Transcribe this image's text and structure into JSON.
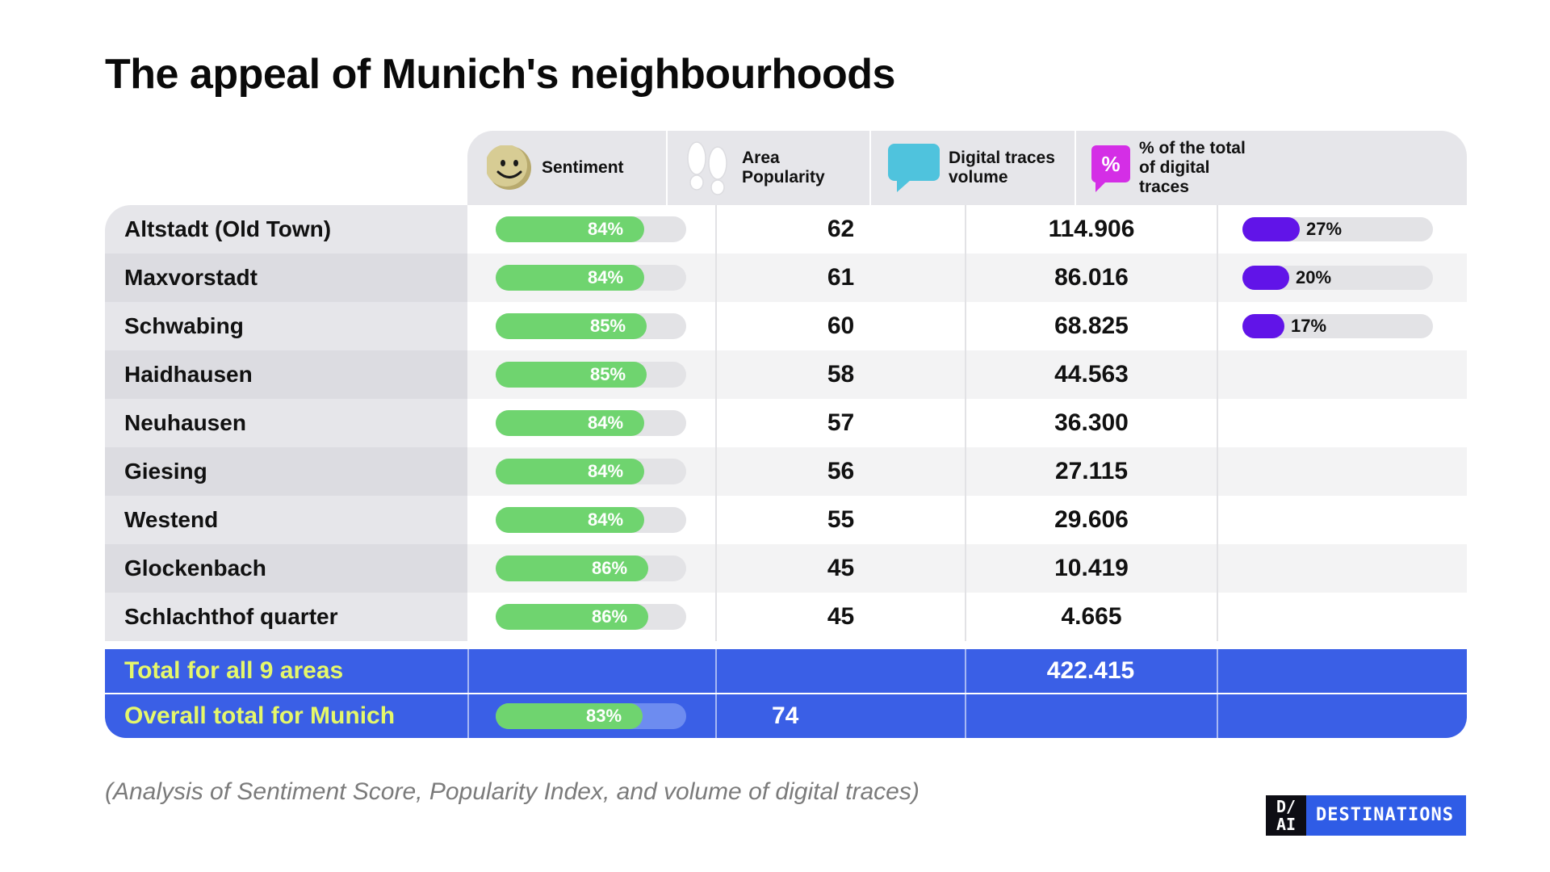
{
  "title": "The appeal of Munich's neighbourhoods",
  "headers": {
    "sentiment": "Sentiment",
    "popularity_line1": "Area",
    "popularity_line2": "Popularity",
    "traces_line1": "Digital traces",
    "traces_line2": "volume",
    "share_line1": "% of the total",
    "share_line2": "of digital",
    "share_line3": "traces",
    "share_icon_text": "%"
  },
  "icons": {
    "sentiment": "smiley-face-icon",
    "popularity": "footprints-icon",
    "traces": "speech-bubble-icon",
    "share": "percent-badge-icon"
  },
  "colors": {
    "sentiment_bar": "#6fd46f",
    "share_bar": "#6114e8",
    "total_row": "#3a5fe6",
    "total_label": "#e5f76a",
    "percent_badge": "#d42ee6",
    "speech_bubble": "#4fc3dd"
  },
  "rows": [
    {
      "name": "Altstadt (Old Town)",
      "sentiment_label": "84%",
      "popularity": "62",
      "traces": "114.906",
      "share_label": "27%"
    },
    {
      "name": "Maxvorstadt",
      "sentiment_label": "84%",
      "popularity": "61",
      "traces": "86.016",
      "share_label": "20%"
    },
    {
      "name": "Schwabing",
      "sentiment_label": "85%",
      "popularity": "60",
      "traces": "68.825",
      "share_label": "17%"
    },
    {
      "name": "Haidhausen",
      "sentiment_label": "85%",
      "popularity": "58",
      "traces": "44.563",
      "share_label": ""
    },
    {
      "name": "Neuhausen",
      "sentiment_label": "84%",
      "popularity": "57",
      "traces": "36.300",
      "share_label": ""
    },
    {
      "name": "Giesing",
      "sentiment_label": "84%",
      "popularity": "56",
      "traces": "27.115",
      "share_label": ""
    },
    {
      "name": "Westend",
      "sentiment_label": "84%",
      "popularity": "55",
      "traces": "29.606",
      "share_label": ""
    },
    {
      "name": "Glockenbach",
      "sentiment_label": "86%",
      "popularity": "45",
      "traces": "10.419",
      "share_label": ""
    },
    {
      "name": "Schlachthof quarter",
      "sentiment_label": "86%",
      "popularity": "45",
      "traces": "4.665",
      "share_label": ""
    }
  ],
  "totals": {
    "areas_label": "Total for all 9 areas",
    "areas_traces": "422.415",
    "munich_label": "Overall total for Munich",
    "munich_sentiment_label": "83%",
    "munich_popularity": "74"
  },
  "caption": "(Analysis of Sentiment Score, Popularity Index, and volume of digital traces)",
  "logo": {
    "mark_top": "D/",
    "mark_bottom": "AI",
    "word": "DESTINATIONS"
  },
  "chart_data": {
    "type": "table",
    "title": "The appeal of Munich's neighbourhoods",
    "columns": [
      "Sentiment",
      "Area Popularity",
      "Digital traces volume",
      "% of the total of digital traces"
    ],
    "categories": [
      "Altstadt (Old Town)",
      "Maxvorstadt",
      "Schwabing",
      "Haidhausen",
      "Neuhausen",
      "Giesing",
      "Westend",
      "Glockenbach",
      "Schlachthof quarter"
    ],
    "series": [
      {
        "name": "Sentiment",
        "values": [
          84,
          84,
          85,
          85,
          84,
          84,
          84,
          86,
          86
        ]
      },
      {
        "name": "Area Popularity",
        "values": [
          62,
          61,
          60,
          58,
          57,
          56,
          55,
          45,
          45
        ]
      },
      {
        "name": "Digital traces volume",
        "values": [
          114906,
          86016,
          68825,
          44563,
          36300,
          27115,
          29606,
          10419,
          4665
        ]
      },
      {
        "name": "% of the total of digital traces",
        "values": [
          27,
          20,
          17,
          null,
          null,
          null,
          null,
          null,
          null
        ]
      }
    ],
    "total_all_areas_traces": 422415,
    "munich_sentiment": 83,
    "munich_popularity": 74,
    "sentiment_range": [
      0,
      100
    ],
    "share_range": [
      0,
      100
    ]
  }
}
